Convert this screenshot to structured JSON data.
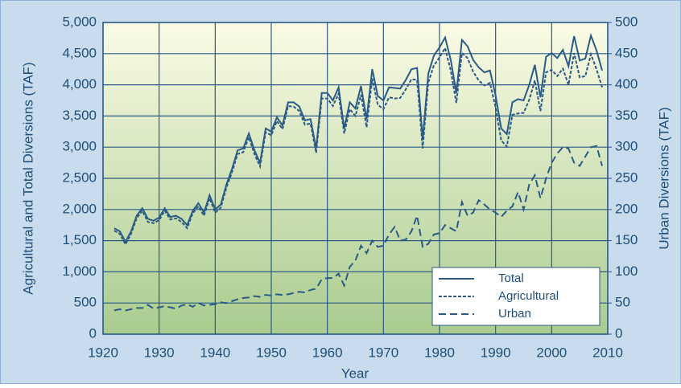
{
  "chart_data": {
    "type": "line",
    "xlabel": "Year",
    "ylabel": "Agricultural and Total Diversions (TAF)",
    "y2label": "Urban Diversions (TAF)",
    "xlim": [
      1920,
      2010
    ],
    "xticks": [
      1920,
      1930,
      1940,
      1950,
      1960,
      1970,
      1980,
      1990,
      2000,
      2010
    ],
    "ylim": [
      0,
      5000
    ],
    "yticks": [
      0,
      500,
      {
        "value": 1000,
        "label": "1,000"
      },
      {
        "value": 1500,
        "label": "1,500"
      },
      {
        "value": 2000,
        "label": "2,000"
      },
      {
        "value": 2500,
        "label": "2,500"
      },
      {
        "value": 3000,
        "label": "3,000"
      },
      {
        "value": 3500,
        "label": "3,500"
      },
      {
        "value": 4000,
        "label": "4,000"
      },
      {
        "value": 4500,
        "label": "4,500"
      },
      {
        "value": 5000,
        "label": "5,000"
      }
    ],
    "y2lim": [
      0,
      500
    ],
    "y2ticks": [
      0,
      50,
      100,
      150,
      200,
      250,
      300,
      350,
      400,
      450,
      500
    ],
    "grid": true,
    "legend": "lower right",
    "x": [
      1922,
      1923,
      1924,
      1925,
      1926,
      1927,
      1928,
      1929,
      1930,
      1931,
      1932,
      1933,
      1934,
      1935,
      1936,
      1937,
      1938,
      1939,
      1940,
      1941,
      1942,
      1943,
      1944,
      1945,
      1946,
      1947,
      1948,
      1949,
      1950,
      1951,
      1952,
      1953,
      1954,
      1955,
      1956,
      1957,
      1958,
      1959,
      1960,
      1961,
      1962,
      1963,
      1964,
      1965,
      1966,
      1967,
      1968,
      1969,
      1970,
      1971,
      1972,
      1973,
      1974,
      1975,
      1976,
      1977,
      1978,
      1979,
      1980,
      1981,
      1982,
      1983,
      1984,
      1985,
      1986,
      1987,
      1988,
      1989,
      1990,
      1991,
      1992,
      1993,
      1994,
      1995,
      1996,
      1997,
      1998,
      1999,
      2000,
      2001,
      2002,
      2003,
      2004,
      2005,
      2006,
      2007,
      2008,
      2009
    ],
    "series": [
      {
        "name": "Total",
        "color": "#2b5a87",
        "style": "solid",
        "values": [
          1700,
          1650,
          1480,
          1650,
          1900,
          2020,
          1850,
          1820,
          1870,
          2020,
          1880,
          1900,
          1850,
          1750,
          1980,
          2100,
          1950,
          2230,
          2000,
          2080,
          2400,
          2650,
          2950,
          2980,
          3220,
          2950,
          2750,
          3300,
          3250,
          3480,
          3350,
          3720,
          3720,
          3650,
          3430,
          3450,
          2980,
          3870,
          3870,
          3750,
          3960,
          3300,
          3720,
          3620,
          3980,
          3450,
          4250,
          3820,
          3750,
          3960,
          3950,
          3940,
          4080,
          4250,
          4270,
          3120,
          4180,
          4470,
          4600,
          4760,
          4400,
          3870,
          4720,
          4620,
          4400,
          4280,
          4200,
          4230,
          3830,
          3300,
          3210,
          3720,
          3770,
          3750,
          4000,
          4320,
          3800,
          4450,
          4510,
          4430,
          4560,
          4300,
          4780,
          4390,
          4420,
          4790,
          4550,
          4230
        ]
      },
      {
        "name": "Agricultural",
        "color": "#2b5a87",
        "style": "dotted",
        "values": [
          1660,
          1610,
          1440,
          1610,
          1860,
          1980,
          1800,
          1780,
          1830,
          1980,
          1840,
          1860,
          1800,
          1700,
          1940,
          2050,
          1900,
          2180,
          1950,
          2030,
          2350,
          2600,
          2890,
          2920,
          3160,
          2890,
          2690,
          3240,
          3190,
          3420,
          3290,
          3660,
          3650,
          3580,
          3360,
          3380,
          2910,
          3780,
          3780,
          3660,
          3860,
          3220,
          3610,
          3500,
          3840,
          3320,
          4100,
          3680,
          3610,
          3800,
          3780,
          3790,
          3930,
          4090,
          4080,
          2980,
          4040,
          4310,
          4440,
          4590,
          4230,
          3710,
          4510,
          4430,
          4210,
          4070,
          3990,
          4030,
          3640,
          3110,
          3010,
          3520,
          3540,
          3550,
          3760,
          4070,
          3580,
          4200,
          4240,
          4140,
          4260,
          4000,
          4510,
          4120,
          4140,
          4490,
          4250,
          3960
        ]
      },
      {
        "name": "Urban",
        "color": "#2b5a87",
        "style": "dashed",
        "axis": "y2",
        "values": [
          38,
          40,
          38,
          40,
          42,
          42,
          47,
          41,
          43,
          45,
          43,
          41,
          46,
          48,
          44,
          50,
          46,
          47,
          48,
          51,
          50,
          53,
          56,
          58,
          59,
          61,
          60,
          63,
          62,
          64,
          63,
          64,
          66,
          68,
          67,
          71,
          73,
          88,
          90,
          90,
          97,
          78,
          108,
          118,
          142,
          130,
          150,
          140,
          142,
          160,
          172,
          150,
          152,
          165,
          190,
          140,
          145,
          160,
          162,
          175,
          170,
          165,
          212,
          190,
          195,
          215,
          208,
          200,
          195,
          188,
          198,
          205,
          228,
          200,
          240,
          255,
          218,
          250,
          275,
          290,
          300,
          298,
          275,
          270,
          285,
          300,
          302,
          270
        ]
      }
    ]
  }
}
